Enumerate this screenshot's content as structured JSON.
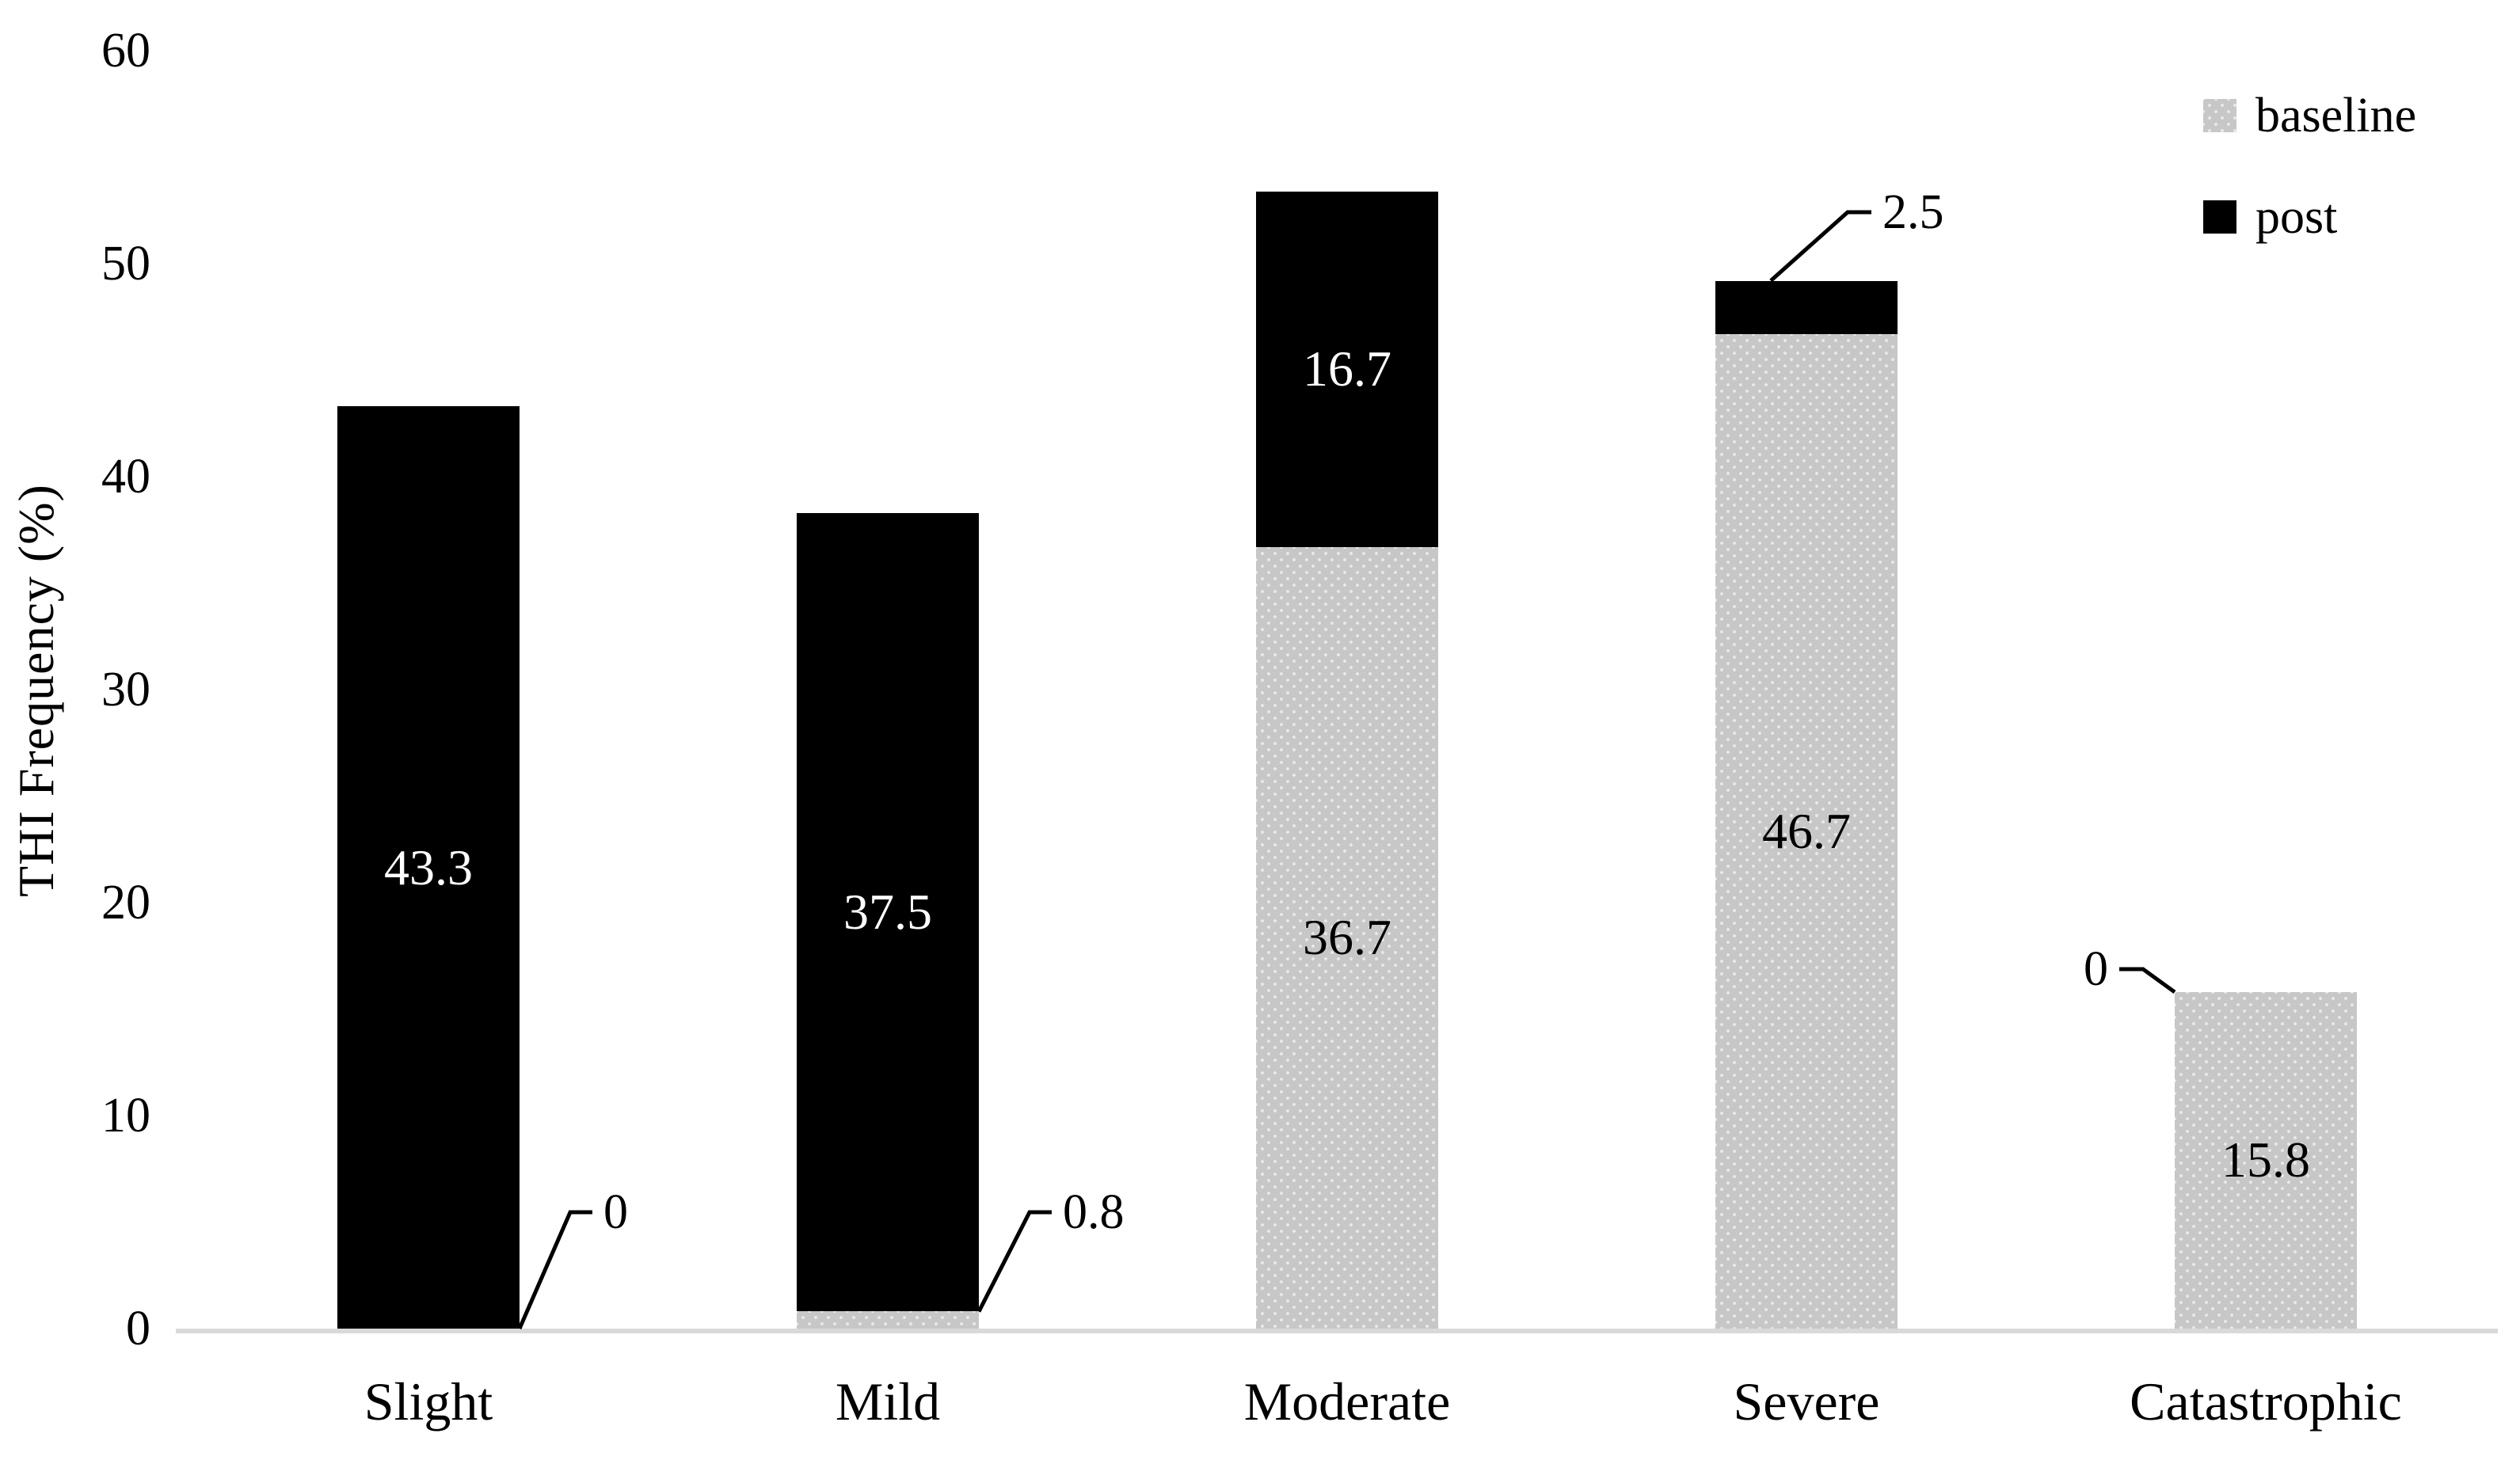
{
  "figure": {
    "background": "#ffffff"
  },
  "legend": {
    "position": "top-right"
  },
  "chart_data": {
    "type": "bar",
    "subtype": "stacked-vertical",
    "title": "",
    "xlabel": "",
    "ylabel": "THI Frequency (%)",
    "ylim": [
      0,
      60
    ],
    "yticks": [
      0,
      10,
      20,
      30,
      40,
      50,
      60
    ],
    "grid": false,
    "legend_position": "top-right",
    "axis_line_color": "#d9d9d9",
    "categories": [
      "Slight",
      "Mild",
      "Moderate",
      "Severe",
      "Catastrophic"
    ],
    "series": [
      {
        "name": "baseline",
        "color": "#c7c7c7",
        "pattern": "dotted",
        "values": [
          0,
          0.8,
          36.7,
          46.7,
          15.8
        ]
      },
      {
        "name": "post",
        "color": "#000000",
        "pattern": "solid",
        "values": [
          43.3,
          37.5,
          16.7,
          2.5,
          0
        ]
      }
    ],
    "inside_labels": [
      "43.3",
      "0.8 (callout)",
      "37.5",
      "36.7",
      "16.7",
      "46.7",
      "15.8"
    ],
    "callouts": [
      {
        "category": "Slight",
        "series": "baseline",
        "label": "0",
        "placement": "bottom-right"
      },
      {
        "category": "Mild",
        "series": "baseline",
        "label": "0.8",
        "placement": "bottom-right"
      },
      {
        "category": "Severe",
        "series": "post",
        "label": "2.5",
        "placement": "top-right"
      },
      {
        "category": "Catastrophic",
        "series": "post",
        "label": "0",
        "placement": "top-left"
      }
    ]
  }
}
